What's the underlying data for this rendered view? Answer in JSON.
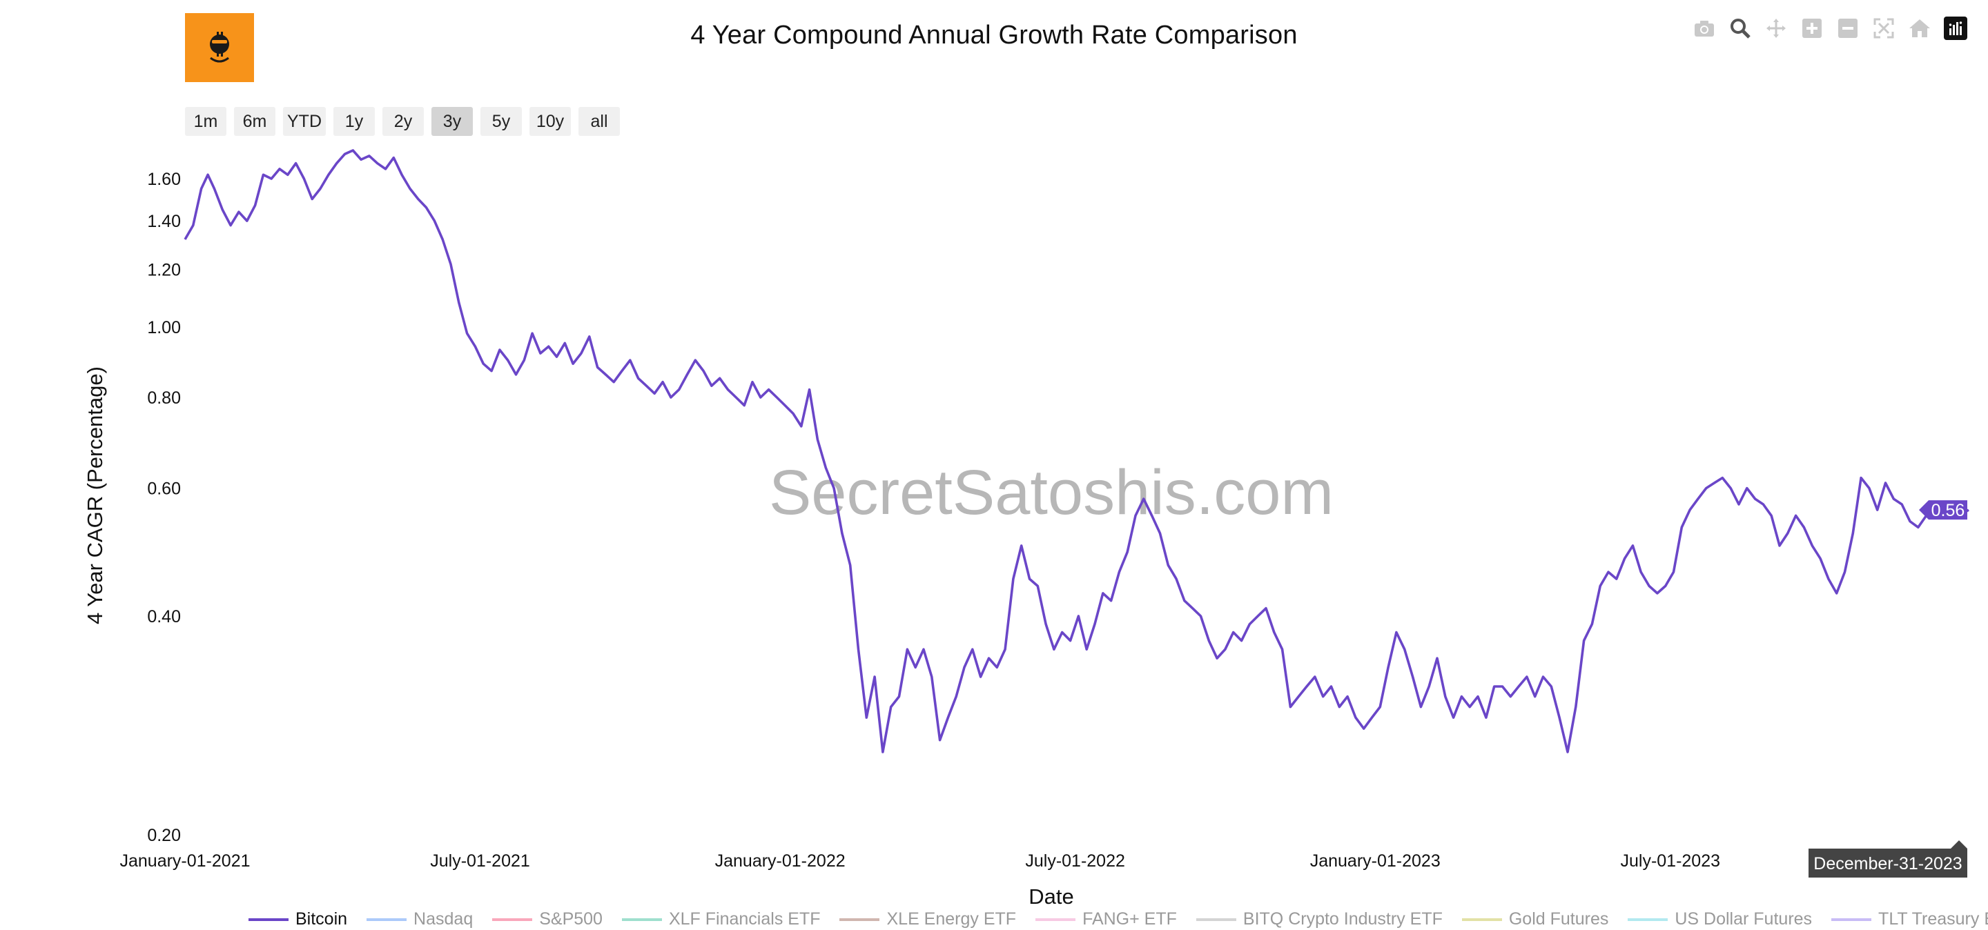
{
  "title": "4 Year Compound Annual Growth Rate Comparison",
  "logo": {
    "name": "bitcoin-logo",
    "color": "#f7931a"
  },
  "watermark": "SecretSatoshis.com",
  "modebar": [
    {
      "name": "camera-icon",
      "title": "Download plot as png"
    },
    {
      "name": "zoom-icon",
      "title": "Zoom"
    },
    {
      "name": "pan-icon",
      "title": "Pan"
    },
    {
      "name": "zoom-in-icon",
      "title": "Zoom in"
    },
    {
      "name": "zoom-out-icon",
      "title": "Zoom out"
    },
    {
      "name": "autoscale-icon",
      "title": "Autoscale"
    },
    {
      "name": "home-icon",
      "title": "Reset axes"
    },
    {
      "name": "plotly-logo-icon",
      "title": "Produced with Plotly"
    }
  ],
  "range_buttons": [
    "1m",
    "6m",
    "YTD",
    "1y",
    "2y",
    "3y",
    "5y",
    "10y",
    "all"
  ],
  "range_active": "3y",
  "hover_label": {
    "value": "0.56",
    "date": "December-31-2023"
  },
  "chart_data": {
    "type": "line",
    "title": "4 Year Compound Annual Growth Rate Comparison",
    "xlabel": "Date",
    "ylabel": "4 Year CAGR (Percentage)",
    "y_scale": "log",
    "x_range": [
      "2021-01-01",
      "2023-12-31"
    ],
    "y_range": [
      0.2,
      1.75
    ],
    "y_ticks": [
      {
        "value": 0.2,
        "label": "0.20"
      },
      {
        "value": 0.4,
        "label": "0.40"
      },
      {
        "value": 0.6,
        "label": "0.60"
      },
      {
        "value": 0.8,
        "label": "0.80"
      },
      {
        "value": 1.0,
        "label": "1.00"
      },
      {
        "value": 1.2,
        "label": "1.20"
      },
      {
        "value": 1.4,
        "label": "1.40"
      },
      {
        "value": 1.6,
        "label": "1.60"
      }
    ],
    "x_ticks": [
      {
        "value": "2021-01-01",
        "label": "January-01-2021"
      },
      {
        "value": "2021-07-01",
        "label": "July-01-2021"
      },
      {
        "value": "2022-01-01",
        "label": "January-01-2022"
      },
      {
        "value": "2022-07-01",
        "label": "July-01-2022"
      },
      {
        "value": "2023-01-01",
        "label": "January-01-2023"
      },
      {
        "value": "2023-07-01",
        "label": "July-01-2023"
      }
    ],
    "grid": false,
    "legend_position": "bottom",
    "series": [
      {
        "name": "Bitcoin",
        "color": "#6a46c8",
        "visible": true,
        "points": [
          [
            "2021-01-01",
            1.32
          ],
          [
            "2021-01-06",
            1.38
          ],
          [
            "2021-01-11",
            1.55
          ],
          [
            "2021-01-15",
            1.62
          ],
          [
            "2021-01-19",
            1.55
          ],
          [
            "2021-01-24",
            1.45
          ],
          [
            "2021-01-29",
            1.38
          ],
          [
            "2021-02-03",
            1.44
          ],
          [
            "2021-02-08",
            1.4
          ],
          [
            "2021-02-13",
            1.47
          ],
          [
            "2021-02-18",
            1.62
          ],
          [
            "2021-02-23",
            1.6
          ],
          [
            "2021-02-28",
            1.65
          ],
          [
            "2021-03-05",
            1.62
          ],
          [
            "2021-03-10",
            1.68
          ],
          [
            "2021-03-15",
            1.6
          ],
          [
            "2021-03-20",
            1.5
          ],
          [
            "2021-03-25",
            1.55
          ],
          [
            "2021-03-30",
            1.62
          ],
          [
            "2021-04-04",
            1.68
          ],
          [
            "2021-04-09",
            1.73
          ],
          [
            "2021-04-14",
            1.75
          ],
          [
            "2021-04-19",
            1.7
          ],
          [
            "2021-04-24",
            1.72
          ],
          [
            "2021-04-29",
            1.68
          ],
          [
            "2021-05-04",
            1.65
          ],
          [
            "2021-05-09",
            1.71
          ],
          [
            "2021-05-14",
            1.62
          ],
          [
            "2021-05-19",
            1.55
          ],
          [
            "2021-05-24",
            1.5
          ],
          [
            "2021-05-29",
            1.46
          ],
          [
            "2021-06-03",
            1.4
          ],
          [
            "2021-06-08",
            1.32
          ],
          [
            "2021-06-13",
            1.22
          ],
          [
            "2021-06-18",
            1.08
          ],
          [
            "2021-06-23",
            0.98
          ],
          [
            "2021-06-28",
            0.94
          ],
          [
            "2021-07-03",
            0.89
          ],
          [
            "2021-07-08",
            0.87
          ],
          [
            "2021-07-13",
            0.93
          ],
          [
            "2021-07-18",
            0.9
          ],
          [
            "2021-07-23",
            0.86
          ],
          [
            "2021-07-28",
            0.9
          ],
          [
            "2021-08-02",
            0.98
          ],
          [
            "2021-08-07",
            0.92
          ],
          [
            "2021-08-12",
            0.94
          ],
          [
            "2021-08-17",
            0.91
          ],
          [
            "2021-08-22",
            0.95
          ],
          [
            "2021-08-27",
            0.89
          ],
          [
            "2021-09-01",
            0.92
          ],
          [
            "2021-09-06",
            0.97
          ],
          [
            "2021-09-11",
            0.88
          ],
          [
            "2021-09-16",
            0.86
          ],
          [
            "2021-09-21",
            0.84
          ],
          [
            "2021-09-26",
            0.87
          ],
          [
            "2021-10-01",
            0.9
          ],
          [
            "2021-10-06",
            0.85
          ],
          [
            "2021-10-11",
            0.83
          ],
          [
            "2021-10-16",
            0.81
          ],
          [
            "2021-10-21",
            0.84
          ],
          [
            "2021-10-26",
            0.8
          ],
          [
            "2021-10-31",
            0.82
          ],
          [
            "2021-11-05",
            0.86
          ],
          [
            "2021-11-10",
            0.9
          ],
          [
            "2021-11-15",
            0.87
          ],
          [
            "2021-11-20",
            0.83
          ],
          [
            "2021-11-25",
            0.85
          ],
          [
            "2021-11-30",
            0.82
          ],
          [
            "2021-12-05",
            0.8
          ],
          [
            "2021-12-10",
            0.78
          ],
          [
            "2021-12-15",
            0.84
          ],
          [
            "2021-12-20",
            0.8
          ],
          [
            "2021-12-25",
            0.82
          ],
          [
            "2021-12-30",
            0.8
          ],
          [
            "2022-01-04",
            0.78
          ],
          [
            "2022-01-09",
            0.76
          ],
          [
            "2022-01-14",
            0.73
          ],
          [
            "2022-01-19",
            0.82
          ],
          [
            "2022-01-24",
            0.7
          ],
          [
            "2022-01-29",
            0.64
          ],
          [
            "2022-02-03",
            0.6
          ],
          [
            "2022-02-08",
            0.52
          ],
          [
            "2022-02-13",
            0.47
          ],
          [
            "2022-02-18",
            0.36
          ],
          [
            "2022-02-23",
            0.29
          ],
          [
            "2022-02-28",
            0.33
          ],
          [
            "2022-03-05",
            0.26
          ],
          [
            "2022-03-10",
            0.3
          ],
          [
            "2022-03-15",
            0.31
          ],
          [
            "2022-03-20",
            0.36
          ],
          [
            "2022-03-25",
            0.34
          ],
          [
            "2022-03-30",
            0.36
          ],
          [
            "2022-04-04",
            0.33
          ],
          [
            "2022-04-09",
            0.27
          ],
          [
            "2022-04-14",
            0.29
          ],
          [
            "2022-04-19",
            0.31
          ],
          [
            "2022-04-24",
            0.34
          ],
          [
            "2022-04-29",
            0.36
          ],
          [
            "2022-05-04",
            0.33
          ],
          [
            "2022-05-09",
            0.35
          ],
          [
            "2022-05-14",
            0.34
          ],
          [
            "2022-05-19",
            0.36
          ],
          [
            "2022-05-24",
            0.45
          ],
          [
            "2022-05-29",
            0.5
          ],
          [
            "2022-06-03",
            0.45
          ],
          [
            "2022-06-08",
            0.44
          ],
          [
            "2022-06-13",
            0.39
          ],
          [
            "2022-06-18",
            0.36
          ],
          [
            "2022-06-23",
            0.38
          ],
          [
            "2022-06-28",
            0.37
          ],
          [
            "2022-07-03",
            0.4
          ],
          [
            "2022-07-08",
            0.36
          ],
          [
            "2022-07-13",
            0.39
          ],
          [
            "2022-07-18",
            0.43
          ],
          [
            "2022-07-23",
            0.42
          ],
          [
            "2022-07-28",
            0.46
          ],
          [
            "2022-08-02",
            0.49
          ],
          [
            "2022-08-07",
            0.55
          ],
          [
            "2022-08-12",
            0.58
          ],
          [
            "2022-08-17",
            0.55
          ],
          [
            "2022-08-22",
            0.52
          ],
          [
            "2022-08-27",
            0.47
          ],
          [
            "2022-09-01",
            0.45
          ],
          [
            "2022-09-06",
            0.42
          ],
          [
            "2022-09-11",
            0.41
          ],
          [
            "2022-09-16",
            0.4
          ],
          [
            "2022-09-21",
            0.37
          ],
          [
            "2022-09-26",
            0.35
          ],
          [
            "2022-10-01",
            0.36
          ],
          [
            "2022-10-06",
            0.38
          ],
          [
            "2022-10-11",
            0.37
          ],
          [
            "2022-10-16",
            0.39
          ],
          [
            "2022-10-21",
            0.4
          ],
          [
            "2022-10-26",
            0.41
          ],
          [
            "2022-10-31",
            0.38
          ],
          [
            "2022-11-05",
            0.36
          ],
          [
            "2022-11-10",
            0.3
          ],
          [
            "2022-11-15",
            0.31
          ],
          [
            "2022-11-20",
            0.32
          ],
          [
            "2022-11-25",
            0.33
          ],
          [
            "2022-11-30",
            0.31
          ],
          [
            "2022-12-05",
            0.32
          ],
          [
            "2022-12-10",
            0.3
          ],
          [
            "2022-12-15",
            0.31
          ],
          [
            "2022-12-20",
            0.29
          ],
          [
            "2022-12-25",
            0.28
          ],
          [
            "2022-12-30",
            0.29
          ],
          [
            "2023-01-04",
            0.3
          ],
          [
            "2023-01-09",
            0.34
          ],
          [
            "2023-01-14",
            0.38
          ],
          [
            "2023-01-19",
            0.36
          ],
          [
            "2023-01-24",
            0.33
          ],
          [
            "2023-01-29",
            0.3
          ],
          [
            "2023-02-03",
            0.32
          ],
          [
            "2023-02-08",
            0.35
          ],
          [
            "2023-02-13",
            0.31
          ],
          [
            "2023-02-18",
            0.29
          ],
          [
            "2023-02-23",
            0.31
          ],
          [
            "2023-02-28",
            0.3
          ],
          [
            "2023-03-05",
            0.31
          ],
          [
            "2023-03-10",
            0.29
          ],
          [
            "2023-03-15",
            0.32
          ],
          [
            "2023-03-20",
            0.32
          ],
          [
            "2023-03-25",
            0.31
          ],
          [
            "2023-03-30",
            0.32
          ],
          [
            "2023-04-04",
            0.33
          ],
          [
            "2023-04-09",
            0.31
          ],
          [
            "2023-04-14",
            0.33
          ],
          [
            "2023-04-19",
            0.32
          ],
          [
            "2023-04-24",
            0.29
          ],
          [
            "2023-04-29",
            0.26
          ],
          [
            "2023-05-04",
            0.3
          ],
          [
            "2023-05-09",
            0.37
          ],
          [
            "2023-05-14",
            0.39
          ],
          [
            "2023-05-19",
            0.44
          ],
          [
            "2023-05-24",
            0.46
          ],
          [
            "2023-05-29",
            0.45
          ],
          [
            "2023-06-03",
            0.48
          ],
          [
            "2023-06-08",
            0.5
          ],
          [
            "2023-06-13",
            0.46
          ],
          [
            "2023-06-18",
            0.44
          ],
          [
            "2023-06-23",
            0.43
          ],
          [
            "2023-06-28",
            0.44
          ],
          [
            "2023-07-03",
            0.46
          ],
          [
            "2023-07-08",
            0.53
          ],
          [
            "2023-07-13",
            0.56
          ],
          [
            "2023-07-18",
            0.58
          ],
          [
            "2023-07-23",
            0.6
          ],
          [
            "2023-07-28",
            0.61
          ],
          [
            "2023-08-02",
            0.62
          ],
          [
            "2023-08-07",
            0.6
          ],
          [
            "2023-08-12",
            0.57
          ],
          [
            "2023-08-17",
            0.6
          ],
          [
            "2023-08-22",
            0.58
          ],
          [
            "2023-08-27",
            0.57
          ],
          [
            "2023-09-01",
            0.55
          ],
          [
            "2023-09-06",
            0.5
          ],
          [
            "2023-09-11",
            0.52
          ],
          [
            "2023-09-16",
            0.55
          ],
          [
            "2023-09-21",
            0.53
          ],
          [
            "2023-09-26",
            0.5
          ],
          [
            "2023-10-01",
            0.48
          ],
          [
            "2023-10-06",
            0.45
          ],
          [
            "2023-10-11",
            0.43
          ],
          [
            "2023-10-16",
            0.46
          ],
          [
            "2023-10-21",
            0.52
          ],
          [
            "2023-10-26",
            0.62
          ],
          [
            "2023-10-31",
            0.6
          ],
          [
            "2023-11-05",
            0.56
          ],
          [
            "2023-11-10",
            0.61
          ],
          [
            "2023-11-15",
            0.58
          ],
          [
            "2023-11-20",
            0.57
          ],
          [
            "2023-11-25",
            0.54
          ],
          [
            "2023-11-30",
            0.53
          ],
          [
            "2023-12-05",
            0.55
          ],
          [
            "2023-12-10",
            0.57
          ],
          [
            "2023-12-15",
            0.55
          ],
          [
            "2023-12-20",
            0.56
          ],
          [
            "2023-12-25",
            0.55
          ],
          [
            "2023-12-31",
            0.56
          ]
        ]
      },
      {
        "name": "Nasdaq",
        "color": "#74a7f7",
        "visible": false
      },
      {
        "name": "S&P500",
        "color": "#f56e8e",
        "visible": false
      },
      {
        "name": "XLF Financials ETF",
        "color": "#5fc9ae",
        "visible": false
      },
      {
        "name": "XLE Energy ETF",
        "color": "#b0857a",
        "visible": false
      },
      {
        "name": "FANG+ ETF",
        "color": "#f2a7d0",
        "visible": false
      },
      {
        "name": "BITQ Crypto Industry ETF",
        "color": "#b7b7b7",
        "visible": false
      },
      {
        "name": "Gold Futures",
        "color": "#cfcd6a",
        "visible": false
      },
      {
        "name": "US Dollar Futures",
        "color": "#7fdbe6",
        "visible": false
      },
      {
        "name": "TLT Treasury Bond ETF",
        "color": "#a48ff0",
        "visible": false
      }
    ]
  }
}
